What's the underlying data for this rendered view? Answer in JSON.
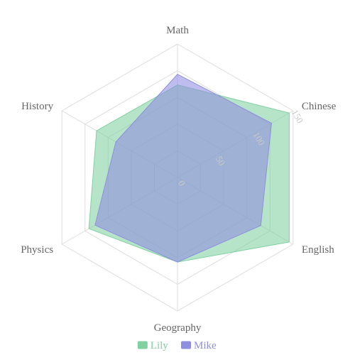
{
  "chart_data": {
    "type": "radar",
    "indicators": [
      "Math",
      "Chinese",
      "English",
      "Geography",
      "Physics",
      "History"
    ],
    "max": 150,
    "ticks": [
      0,
      50,
      100,
      150
    ],
    "tick_labels": [
      "0",
      "50",
      "100",
      "150"
    ],
    "tick_label_angle_deg": 60,
    "grid": true,
    "legend_position": "bottom",
    "series": [
      {
        "name": "Lily",
        "values": [
          104,
          145,
          145,
          95,
          115,
          105
        ],
        "color": "#7fd1a0"
      },
      {
        "name": "Mike",
        "values": [
          116,
          122,
          108,
          95,
          107,
          80
        ],
        "color": "#8f8ee0"
      }
    ]
  }
}
